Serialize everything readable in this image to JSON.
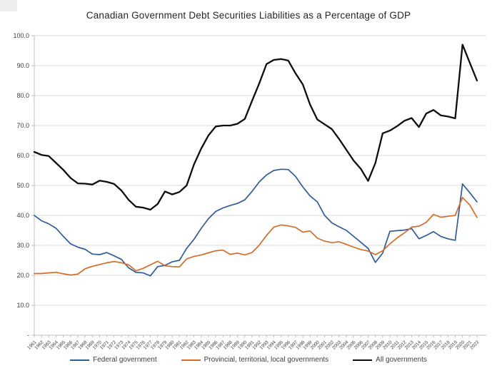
{
  "page": {
    "title": "Canadian Government Debt Securities Liabilities as a Percentage of GDP",
    "background": "#ffffff"
  },
  "chart_data": {
    "type": "line",
    "title": "Canadian Government Debt Securities Liabilities as a Percentage of GDP",
    "x": [
      "1961",
      "1962",
      "1963",
      "1964",
      "1965",
      "1966",
      "1967",
      "1968",
      "1969",
      "1970",
      "1971",
      "1972",
      "1973",
      "1974",
      "1975",
      "1976",
      "1977",
      "1978",
      "1979",
      "1980",
      "1981",
      "1982",
      "1983",
      "1984",
      "1985",
      "1986",
      "1987",
      "1988",
      "1989",
      "1990",
      "1991",
      "1992",
      "1993",
      "1994",
      "1995",
      "1996",
      "1997",
      "1998",
      "1999",
      "2000",
      "2001",
      "2002",
      "2003",
      "2004",
      "2005",
      "2006",
      "2007",
      "2008",
      "2009",
      "2010",
      "2011",
      "2012",
      "2013",
      "2014",
      "2015",
      "2016",
      "2017",
      "2018",
      "2019",
      "2020",
      "2021",
      "2022"
    ],
    "series": [
      {
        "name": "Federal government",
        "color": "#2e5c9e",
        "width": 1.7,
        "values": [
          40.0,
          38.2,
          37.2,
          35.7,
          33.0,
          30.5,
          29.4,
          28.7,
          27.1,
          26.9,
          27.6,
          26.5,
          25.3,
          22.5,
          21.0,
          20.8,
          19.8,
          22.9,
          23.3,
          24.5,
          25.0,
          29.0,
          32.0,
          35.7,
          38.9,
          41.3,
          42.5,
          43.3,
          44.0,
          45.2,
          48.0,
          51.2,
          53.5,
          55.0,
          55.4,
          55.3,
          53.0,
          49.5,
          46.5,
          44.5,
          40.0,
          37.5,
          36.2,
          35.0,
          33.0,
          31.0,
          29.0,
          24.3,
          27.4,
          34.7,
          34.9,
          35.1,
          35.6,
          32.2,
          33.3,
          34.6,
          33.0,
          32.2,
          31.7,
          50.5,
          47.6,
          44.5
        ]
      },
      {
        "name": "Provincial, territorial, local governments",
        "color": "#d86c27",
        "width": 1.7,
        "values": [
          20.6,
          20.6,
          20.8,
          21.0,
          20.5,
          20.1,
          20.4,
          22.2,
          23.0,
          23.6,
          24.2,
          24.6,
          24.2,
          23.5,
          21.5,
          22.3,
          23.5,
          24.7,
          23.2,
          22.9,
          22.8,
          25.5,
          26.3,
          26.8,
          27.5,
          28.2,
          28.4,
          27.0,
          27.4,
          26.8,
          27.6,
          30.1,
          33.3,
          36.1,
          36.8,
          36.5,
          36.0,
          34.4,
          34.8,
          32.4,
          31.4,
          30.9,
          31.2,
          30.3,
          29.4,
          28.6,
          28.1,
          26.9,
          28.2,
          30.5,
          32.5,
          34.2,
          36.1,
          36.4,
          37.7,
          40.3,
          39.4,
          39.7,
          40.0,
          46.0,
          43.5,
          39.3
        ]
      },
      {
        "name": "All governments",
        "color": "#0d0d0d",
        "width": 2.3,
        "values": [
          61.2,
          60.2,
          59.8,
          57.5,
          55.2,
          52.5,
          50.7,
          50.6,
          50.3,
          51.6,
          51.2,
          50.5,
          48.3,
          45.2,
          42.9,
          42.6,
          41.9,
          43.8,
          48.0,
          47.0,
          47.8,
          50.0,
          57.0,
          62.3,
          66.7,
          69.7,
          70.0,
          70.0,
          70.6,
          72.2,
          78.2,
          84.1,
          90.5,
          91.9,
          92.2,
          91.7,
          87.4,
          83.7,
          77.0,
          72.0,
          70.4,
          68.8,
          65.5,
          61.9,
          58.3,
          55.5,
          51.5,
          57.5,
          67.4,
          68.3,
          69.8,
          71.6,
          72.5,
          69.5,
          74.0,
          75.2,
          73.4,
          73.0,
          72.4,
          97.0,
          91.0,
          85.0
        ]
      }
    ],
    "ylim": [
      0,
      100
    ],
    "yticks": [
      {
        "v": 100,
        "label": "100.0"
      },
      {
        "v": 90,
        "label": "90.0"
      },
      {
        "v": 80,
        "label": "80.0"
      },
      {
        "v": 70,
        "label": "70.0"
      },
      {
        "v": 60,
        "label": "60.0"
      },
      {
        "v": 50,
        "label": "50.0"
      },
      {
        "v": 40,
        "label": "40.0"
      },
      {
        "v": 30,
        "label": "30.0"
      },
      {
        "v": 20,
        "label": "20.0"
      },
      {
        "v": 10,
        "label": "10.0"
      },
      {
        "v": 0,
        "label": "-"
      }
    ],
    "grid": true,
    "gridline_color": "#d9d9d9",
    "axis_color": "#bfbfbf",
    "label_color": "#404040",
    "legend_position": "bottom"
  }
}
